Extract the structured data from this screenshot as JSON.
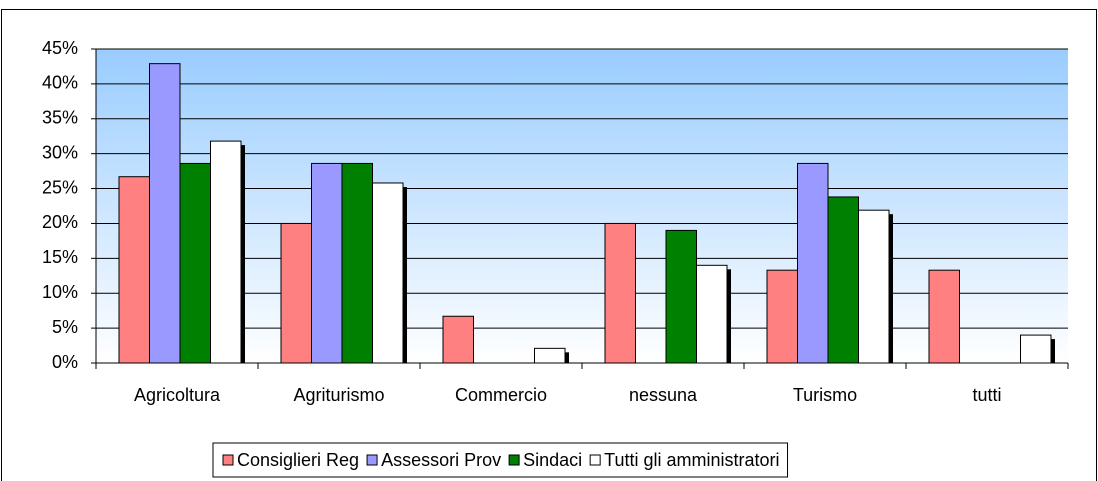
{
  "chart_data": {
    "type": "bar",
    "categories": [
      "Agricoltura",
      "Agriturismo",
      "Commercio",
      "nessuna",
      "Turismo",
      "tutti"
    ],
    "series": [
      {
        "name": "Consiglieri Reg",
        "color": "#ff8080",
        "values": [
          26.7,
          20.0,
          6.7,
          20.0,
          13.3,
          13.3
        ]
      },
      {
        "name": "Assessori Prov",
        "color": "#9999ff",
        "values": [
          42.9,
          28.6,
          0,
          0,
          28.6,
          0
        ]
      },
      {
        "name": "Sindaci",
        "color": "#008000",
        "values": [
          28.6,
          28.6,
          0,
          19.0,
          23.8,
          0
        ]
      },
      {
        "name": "Tutti gli amministratori",
        "color": "#ffffff",
        "values": [
          31.8,
          25.8,
          2.1,
          14.0,
          21.9,
          4.0
        ]
      }
    ],
    "ylim": [
      0,
      45
    ],
    "yticks": [
      {
        "value": 0,
        "label": "0%"
      },
      {
        "value": 5,
        "label": "5%"
      },
      {
        "value": 10,
        "label": "10%"
      },
      {
        "value": 15,
        "label": "15%"
      },
      {
        "value": 20,
        "label": "20%"
      },
      {
        "value": 25,
        "label": "25%"
      },
      {
        "value": 30,
        "label": "30%"
      },
      {
        "value": 35,
        "label": "35%"
      },
      {
        "value": 40,
        "label": "40%"
      },
      {
        "value": 45,
        "label": "45%"
      }
    ],
    "grid": true,
    "legend": "bottom"
  }
}
